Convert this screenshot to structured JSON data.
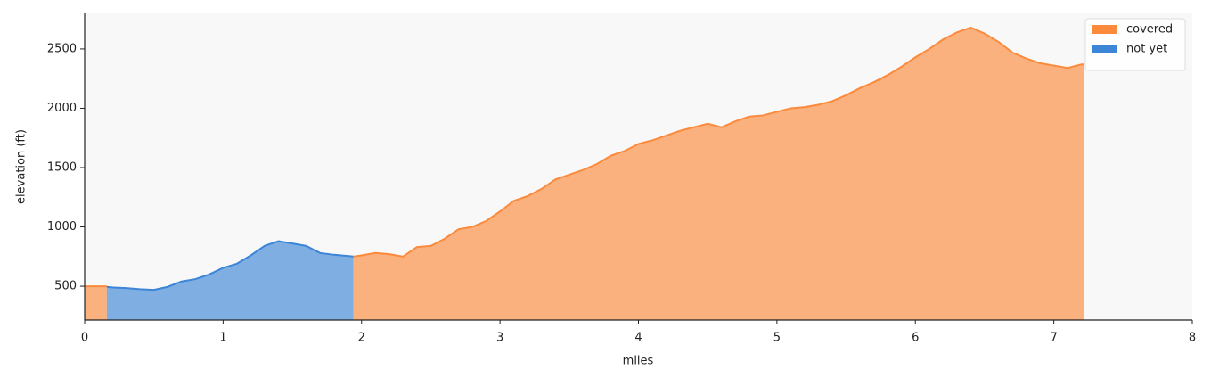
{
  "chart_data": {
    "type": "area",
    "xlabel": "miles",
    "ylabel": "elevation (ft)",
    "x": [
      0,
      0.16,
      0.2,
      0.3,
      0.4,
      0.5,
      0.6,
      0.7,
      0.8,
      0.9,
      1.0,
      1.1,
      1.2,
      1.3,
      1.4,
      1.5,
      1.6,
      1.7,
      1.8,
      1.9,
      1.94,
      2.0,
      2.1,
      2.2,
      2.3,
      2.4,
      2.5,
      2.6,
      2.7,
      2.8,
      2.9,
      3.0,
      3.1,
      3.2,
      3.3,
      3.4,
      3.5,
      3.6,
      3.7,
      3.8,
      3.9,
      4.0,
      4.1,
      4.2,
      4.3,
      4.4,
      4.5,
      4.6,
      4.7,
      4.8,
      4.9,
      5.0,
      5.1,
      5.2,
      5.3,
      5.4,
      5.5,
      5.6,
      5.7,
      5.8,
      5.9,
      6.0,
      6.1,
      6.2,
      6.3,
      6.4,
      6.5,
      6.6,
      6.7,
      6.8,
      6.9,
      7.0,
      7.1,
      7.2,
      7.22
    ],
    "series": [
      {
        "name": "covered",
        "color": "#fb8a3c",
        "values": [
          500,
          500,
          null,
          null,
          null,
          null,
          null,
          null,
          null,
          null,
          null,
          null,
          null,
          null,
          null,
          null,
          null,
          null,
          null,
          null,
          750,
          760,
          780,
          770,
          750,
          830,
          840,
          900,
          980,
          1000,
          1050,
          1130,
          1220,
          1260,
          1320,
          1400,
          1440,
          1480,
          1530,
          1600,
          1640,
          1700,
          1730,
          1770,
          1810,
          1840,
          1870,
          1840,
          1890,
          1930,
          1940,
          1970,
          2000,
          2010,
          2030,
          2060,
          2110,
          2170,
          2220,
          2280,
          2350,
          2430,
          2500,
          2580,
          2640,
          2680,
          2630,
          2560,
          2470,
          2420,
          2380,
          2360,
          2340,
          2370,
          2370
        ]
      },
      {
        "name": "not yet",
        "color": "#3d85d6",
        "values": [
          null,
          495,
          490,
          485,
          475,
          470,
          495,
          540,
          560,
          600,
          655,
          690,
          760,
          840,
          880,
          860,
          840,
          780,
          765,
          755,
          750,
          null,
          null,
          null,
          null,
          null,
          null,
          null,
          null,
          null,
          null,
          null,
          null,
          null,
          null,
          null,
          null,
          null,
          null,
          null,
          null,
          null,
          null,
          null,
          null,
          null,
          null,
          null,
          null,
          null,
          null,
          null,
          null,
          null,
          null,
          null,
          null,
          null,
          null,
          null,
          null,
          null,
          null,
          null,
          null,
          null,
          null,
          null,
          null,
          null,
          null,
          null,
          null,
          null,
          null
        ]
      }
    ],
    "xlim": [
      0,
      8
    ],
    "xticks": [
      0,
      1,
      2,
      3,
      4,
      5,
      6,
      7,
      8
    ],
    "ylim": [
      215,
      2800
    ],
    "yticks": [
      500,
      1000,
      1500,
      2000,
      2500
    ],
    "legend": "upper right"
  }
}
